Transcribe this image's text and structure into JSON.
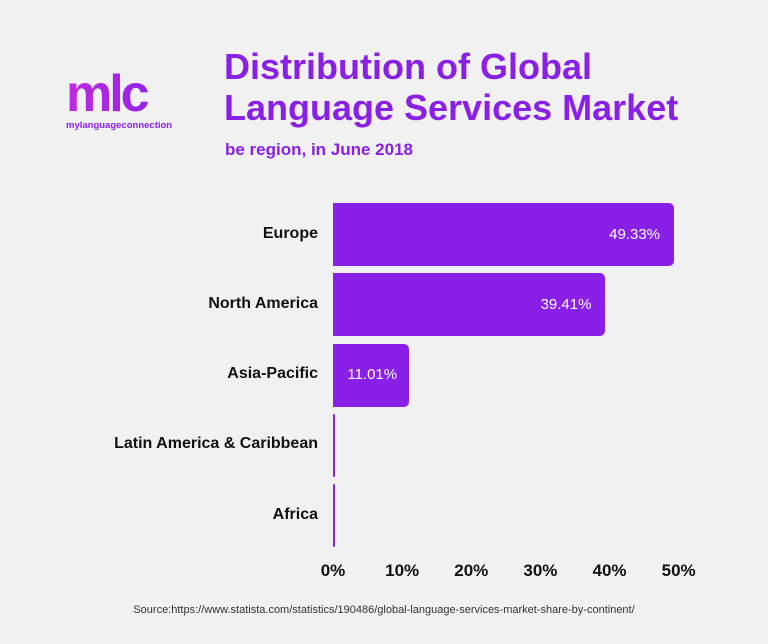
{
  "logo": {
    "mark": "mlc",
    "text": "mylanguageconnection"
  },
  "header": {
    "title_line1": "Distribution of Global",
    "title_line2": "Language Services Market",
    "subtitle": "be region, in June 2018"
  },
  "chart_data": {
    "type": "bar",
    "orientation": "horizontal",
    "title": "Distribution of Global Language Services Market",
    "subtitle": "be region, in June 2018",
    "categories": [
      "Europe",
      "North America",
      "Asia-Pacific",
      "Latin America & Caribbean",
      "Africa"
    ],
    "values": [
      49.33,
      39.41,
      11.01,
      0.2,
      0.05
    ],
    "value_labels": [
      "49.33%",
      "39.41%",
      "11.01%",
      "",
      ""
    ],
    "xlim": [
      0,
      50
    ],
    "x_ticks": [
      "0%",
      "10%",
      "20%",
      "30%",
      "40%",
      "50%"
    ],
    "color": "#8a1fe8",
    "grid": false
  },
  "source": "Source:https://www.statista.com/statistics/190486/global-language-services-market-share-by-continent/"
}
